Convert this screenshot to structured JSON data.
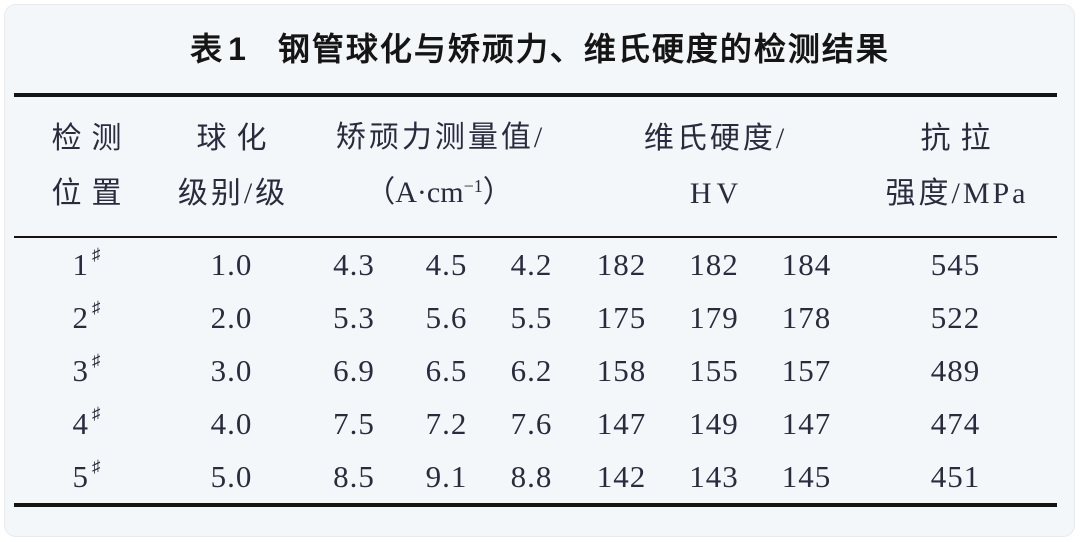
{
  "page": {
    "background": "#f4f7fa",
    "rule_color": "#141414",
    "text_color": "#2a2c3e"
  },
  "table": {
    "title_label": "表1",
    "title_text": "钢管球化与矫顽力、维氏硬度的检测结果",
    "columns": {
      "position": {
        "line1": "检测",
        "line2": "位置"
      },
      "level": {
        "line1": "球化",
        "line2": "级别/级"
      },
      "coercive": {
        "line1": "矫顽力测量值/",
        "unit_prefix": "（A·cm",
        "unit_sup": "−1",
        "unit_suffix": "）"
      },
      "hardness": {
        "line1": "维氏硬度/",
        "line2": "HV"
      },
      "tensile": {
        "line1": "抗拉",
        "line2": "强度/MPa"
      }
    },
    "rows": [
      {
        "position": "1",
        "position_sup": "♯",
        "level": "1.0",
        "coercive": [
          "4.3",
          "4.5",
          "4.2"
        ],
        "hardness": [
          "182",
          "182",
          "184"
        ],
        "tensile": "545"
      },
      {
        "position": "2",
        "position_sup": "♯",
        "level": "2.0",
        "coercive": [
          "5.3",
          "5.6",
          "5.5"
        ],
        "hardness": [
          "175",
          "179",
          "178"
        ],
        "tensile": "522"
      },
      {
        "position": "3",
        "position_sup": "♯",
        "level": "3.0",
        "coercive": [
          "6.9",
          "6.5",
          "6.2"
        ],
        "hardness": [
          "158",
          "155",
          "157"
        ],
        "tensile": "489"
      },
      {
        "position": "4",
        "position_sup": "♯",
        "level": "4.0",
        "coercive": [
          "7.5",
          "7.2",
          "7.6"
        ],
        "hardness": [
          "147",
          "149",
          "147"
        ],
        "tensile": "474"
      },
      {
        "position": "5",
        "position_sup": "♯",
        "level": "5.0",
        "coercive": [
          "8.5",
          "9.1",
          "8.8"
        ],
        "hardness": [
          "142",
          "143",
          "145"
        ],
        "tensile": "451"
      }
    ]
  },
  "chart_data": {
    "type": "table",
    "title": "表1 钢管球化与矫顽力、维氏硬度的检测结果",
    "columns": [
      "检测位置",
      "球化级别/级",
      "矫顽力测量值/(A·cm−1)",
      "维氏硬度/HV",
      "抗拉强度/MPa"
    ],
    "rows": [
      [
        "1♯",
        1.0,
        [
          4.3,
          4.5,
          4.2
        ],
        [
          182,
          182,
          184
        ],
        545
      ],
      [
        "2♯",
        2.0,
        [
          5.3,
          5.6,
          5.5
        ],
        [
          175,
          179,
          178
        ],
        522
      ],
      [
        "3♯",
        3.0,
        [
          6.9,
          6.5,
          6.2
        ],
        [
          158,
          155,
          157
        ],
        489
      ],
      [
        "4♯",
        4.0,
        [
          7.5,
          7.2,
          7.6
        ],
        [
          147,
          149,
          147
        ],
        474
      ],
      [
        "5♯",
        5.0,
        [
          8.5,
          9.1,
          8.8
        ],
        [
          142,
          143,
          145
        ],
        451
      ]
    ]
  }
}
